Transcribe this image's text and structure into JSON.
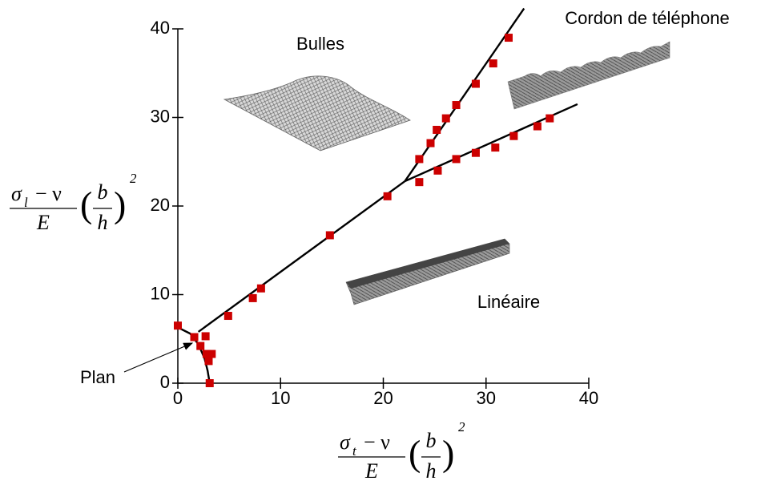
{
  "chart_data": {
    "type": "scatter",
    "annotations": [
      "Bulles",
      "Cordon de téléphone",
      "Linéaire",
      "Plan"
    ],
    "x_label": {
      "sigma": "σ",
      "sub": "t",
      "rest": "− ν",
      "denominator": "E",
      "b": "b",
      "h": "h",
      "exponent": "2"
    },
    "y_label": {
      "sigma": "σ",
      "sub": "l",
      "rest": "− ν",
      "denominator": "E",
      "b": "b",
      "h": "h",
      "exponent": "2"
    },
    "xlim": [
      0,
      40
    ],
    "ylim": [
      0,
      40
    ],
    "xticks": [
      0,
      10,
      20,
      30,
      40
    ],
    "yticks": [
      0,
      10,
      20,
      30,
      40
    ],
    "color": "#cc0000",
    "x": [
      0,
      1.6,
      2.7,
      2.2,
      2.8,
      3.3,
      3.0,
      3.1,
      4.9,
      7.3,
      8.1,
      14.8,
      20.4,
      23.5,
      23.5,
      24.6,
      25.2,
      25.3,
      26.1,
      27.1,
      27.1,
      29.0,
      29.0,
      30.7,
      30.9,
      32.2,
      32.7,
      35.0,
      36.2
    ],
    "values": [
      6.5,
      5.2,
      5.3,
      4.2,
      3.3,
      3.3,
      2.5,
      0,
      7.6,
      9.6,
      10.7,
      16.7,
      21.1,
      25.3,
      22.7,
      27.1,
      28.6,
      24.0,
      29.9,
      31.4,
      25.3,
      33.8,
      26.0,
      36.1,
      26.6,
      39.0,
      27.9,
      29.0,
      29.9
    ],
    "lines": [
      {
        "color": "#000000",
        "x": [
          0,
          1.2,
          2.0,
          2.6,
          2.9,
          3.1
        ],
        "values": [
          6.3,
          5.6,
          4.4,
          2.8,
          1.4,
          0
        ]
      },
      {
        "color": "#000000",
        "x": [
          2.0,
          22.1
        ],
        "values": [
          5.8,
          22.8
        ]
      },
      {
        "color": "#000000",
        "x": [
          22.1,
          33.7
        ],
        "values": [
          22.8,
          42.3
        ]
      },
      {
        "color": "#000000",
        "x": [
          22.1,
          38.9
        ],
        "values": [
          22.8,
          31.5
        ]
      }
    ]
  }
}
